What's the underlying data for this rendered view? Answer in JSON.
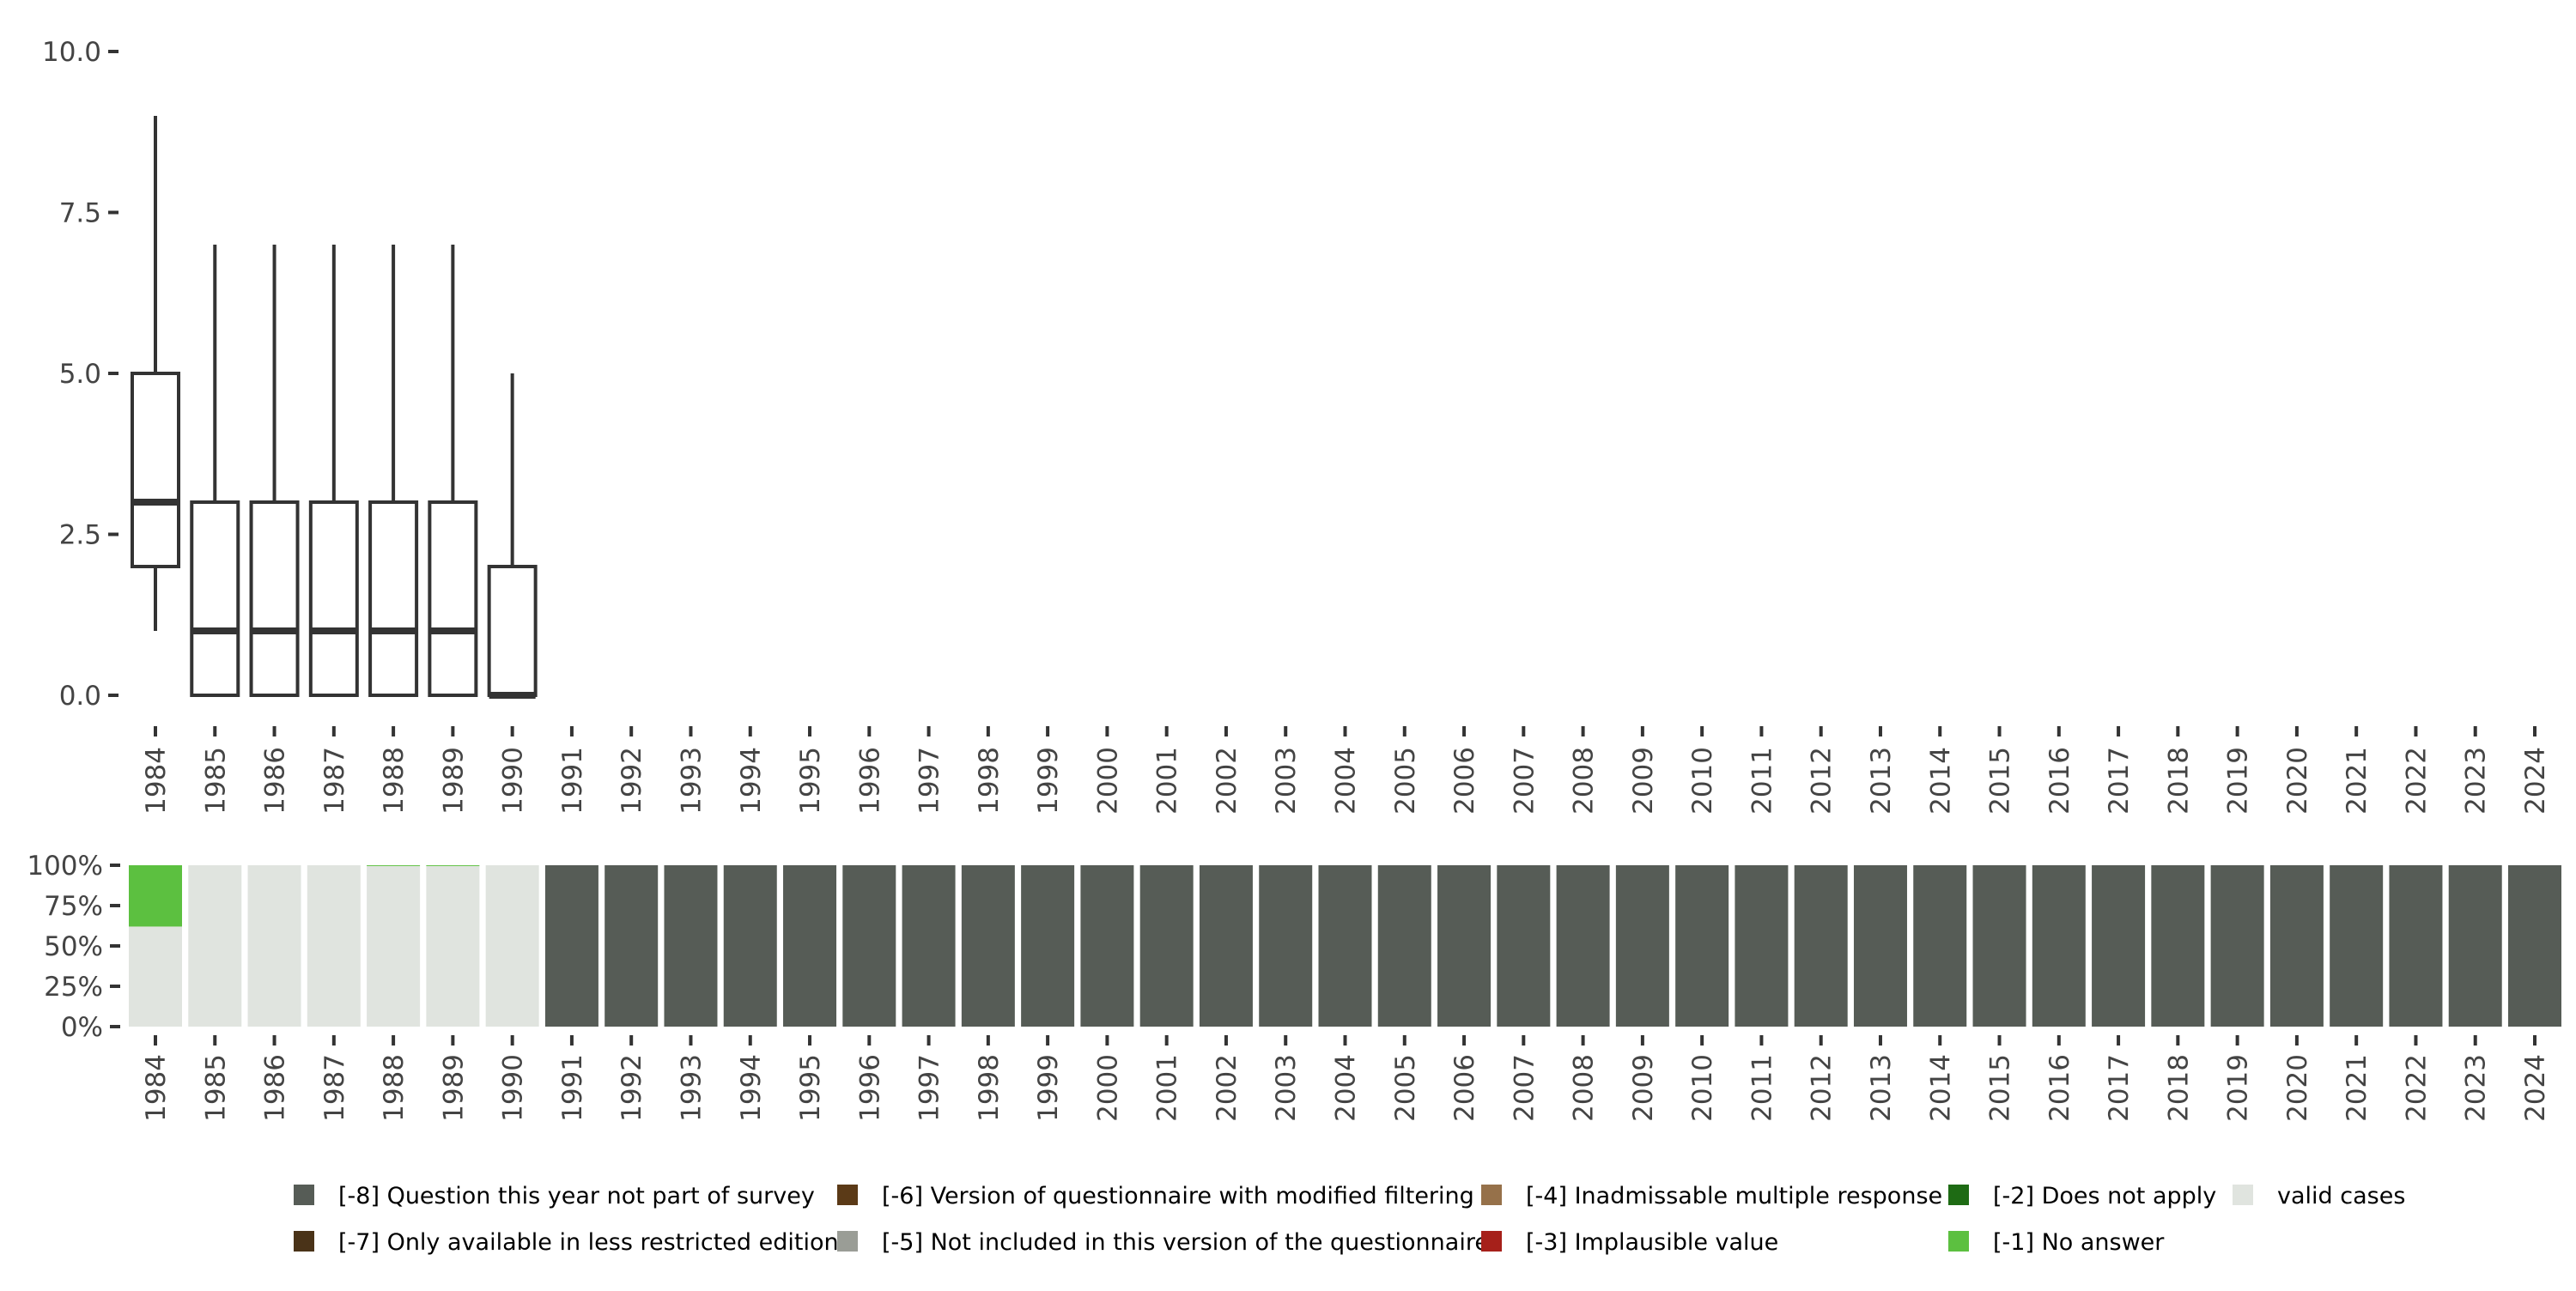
{
  "chart_data": [
    {
      "type": "boxplot",
      "categories": [
        "1984",
        "1985",
        "1986",
        "1987",
        "1988",
        "1989",
        "1990",
        "1991",
        "1992",
        "1993",
        "1994",
        "1995",
        "1996",
        "1997",
        "1998",
        "1999",
        "2000",
        "2001",
        "2002",
        "2003",
        "2004",
        "2005",
        "2006",
        "2007",
        "2008",
        "2009",
        "2010",
        "2011",
        "2012",
        "2013",
        "2014",
        "2015",
        "2016",
        "2017",
        "2018",
        "2019",
        "2020",
        "2021",
        "2022",
        "2023",
        "2024"
      ],
      "boxes": [
        {
          "x": "1984",
          "min": 1,
          "q1": 2,
          "median": 3,
          "q3": 5,
          "max": 9
        },
        {
          "x": "1985",
          "min": 0,
          "q1": 0,
          "median": 1,
          "q3": 3,
          "max": 7
        },
        {
          "x": "1986",
          "min": 0,
          "q1": 0,
          "median": 1,
          "q3": 3,
          "max": 7
        },
        {
          "x": "1987",
          "min": 0,
          "q1": 0,
          "median": 1,
          "q3": 3,
          "max": 7
        },
        {
          "x": "1988",
          "min": 0,
          "q1": 0,
          "median": 1,
          "q3": 3,
          "max": 7
        },
        {
          "x": "1989",
          "min": 0,
          "q1": 0,
          "median": 1,
          "q3": 3,
          "max": 7
        },
        {
          "x": "1990",
          "min": 0,
          "q1": 0,
          "median": 0,
          "q3": 2,
          "max": 5
        }
      ],
      "ylim": [
        0,
        10
      ],
      "yticks": [
        0,
        2.5,
        5,
        7.5,
        10
      ],
      "ytick_labels": [
        "0.0",
        "2.5",
        "5.0",
        "7.5",
        "10.0"
      ],
      "xlabel": "",
      "ylabel": "",
      "grid": false
    },
    {
      "type": "stacked_bar",
      "categories": [
        "1984",
        "1985",
        "1986",
        "1987",
        "1988",
        "1989",
        "1990",
        "1991",
        "1992",
        "1993",
        "1994",
        "1995",
        "1996",
        "1997",
        "1998",
        "1999",
        "2000",
        "2001",
        "2002",
        "2003",
        "2004",
        "2005",
        "2006",
        "2007",
        "2008",
        "2009",
        "2010",
        "2011",
        "2012",
        "2013",
        "2014",
        "2015",
        "2016",
        "2017",
        "2018",
        "2019",
        "2020",
        "2021",
        "2022",
        "2023",
        "2024"
      ],
      "ylim": [
        0,
        100
      ],
      "ytick_labels": [
        "0%",
        "25%",
        "50%",
        "75%",
        "100%"
      ],
      "yticks": [
        0,
        25,
        50,
        75,
        100
      ],
      "series": [
        {
          "name": "valid cases",
          "color": "#e0e4df",
          "values": [
            62,
            100,
            100,
            100,
            99.5,
            99.5,
            100,
            0,
            0,
            0,
            0,
            0,
            0,
            0,
            0,
            0,
            0,
            0,
            0,
            0,
            0,
            0,
            0,
            0,
            0,
            0,
            0,
            0,
            0,
            0,
            0,
            0,
            0,
            0,
            0,
            0,
            0,
            0,
            0,
            0,
            0
          ]
        },
        {
          "name": "[-1] No answer",
          "color": "#5cc040",
          "values": [
            38,
            0,
            0,
            0,
            0.5,
            0.5,
            0,
            0,
            0,
            0,
            0,
            0,
            0,
            0,
            0,
            0,
            0,
            0,
            0,
            0,
            0,
            0,
            0,
            0,
            0,
            0,
            0,
            0,
            0,
            0,
            0,
            0,
            0,
            0,
            0,
            0,
            0,
            0,
            0,
            0,
            0
          ]
        },
        {
          "name": "[-8] Question this year not part of survey",
          "color": "#565c56",
          "values": [
            0,
            0,
            0,
            0,
            0,
            0,
            0,
            100,
            100,
            100,
            100,
            100,
            100,
            100,
            100,
            100,
            100,
            100,
            100,
            100,
            100,
            100,
            100,
            100,
            100,
            100,
            100,
            100,
            100,
            100,
            100,
            100,
            100,
            100,
            100,
            100,
            100,
            100,
            100,
            100,
            100
          ]
        }
      ],
      "legend_position": "bottom",
      "legend": [
        {
          "label": "[-8] Question this year not part of survey",
          "color": "#565c56"
        },
        {
          "label": "[-7] Only available in less restricted edition",
          "color": "#4a3318"
        },
        {
          "label": "[-6] Version of questionnaire with modified filtering",
          "color": "#5b3a17"
        },
        {
          "label": "[-5] Not included in this version of the questionnaire",
          "color": "#9a9d96"
        },
        {
          "label": "[-4] Inadmissable multiple response",
          "color": "#96714a"
        },
        {
          "label": "[-3] Implausible value",
          "color": "#a6201a"
        },
        {
          "label": "[-2] Does not apply",
          "color": "#1e6b14"
        },
        {
          "label": "[-1] No answer",
          "color": "#5cc040"
        },
        {
          "label": "valid cases",
          "color": "#e0e4df"
        }
      ]
    }
  ]
}
